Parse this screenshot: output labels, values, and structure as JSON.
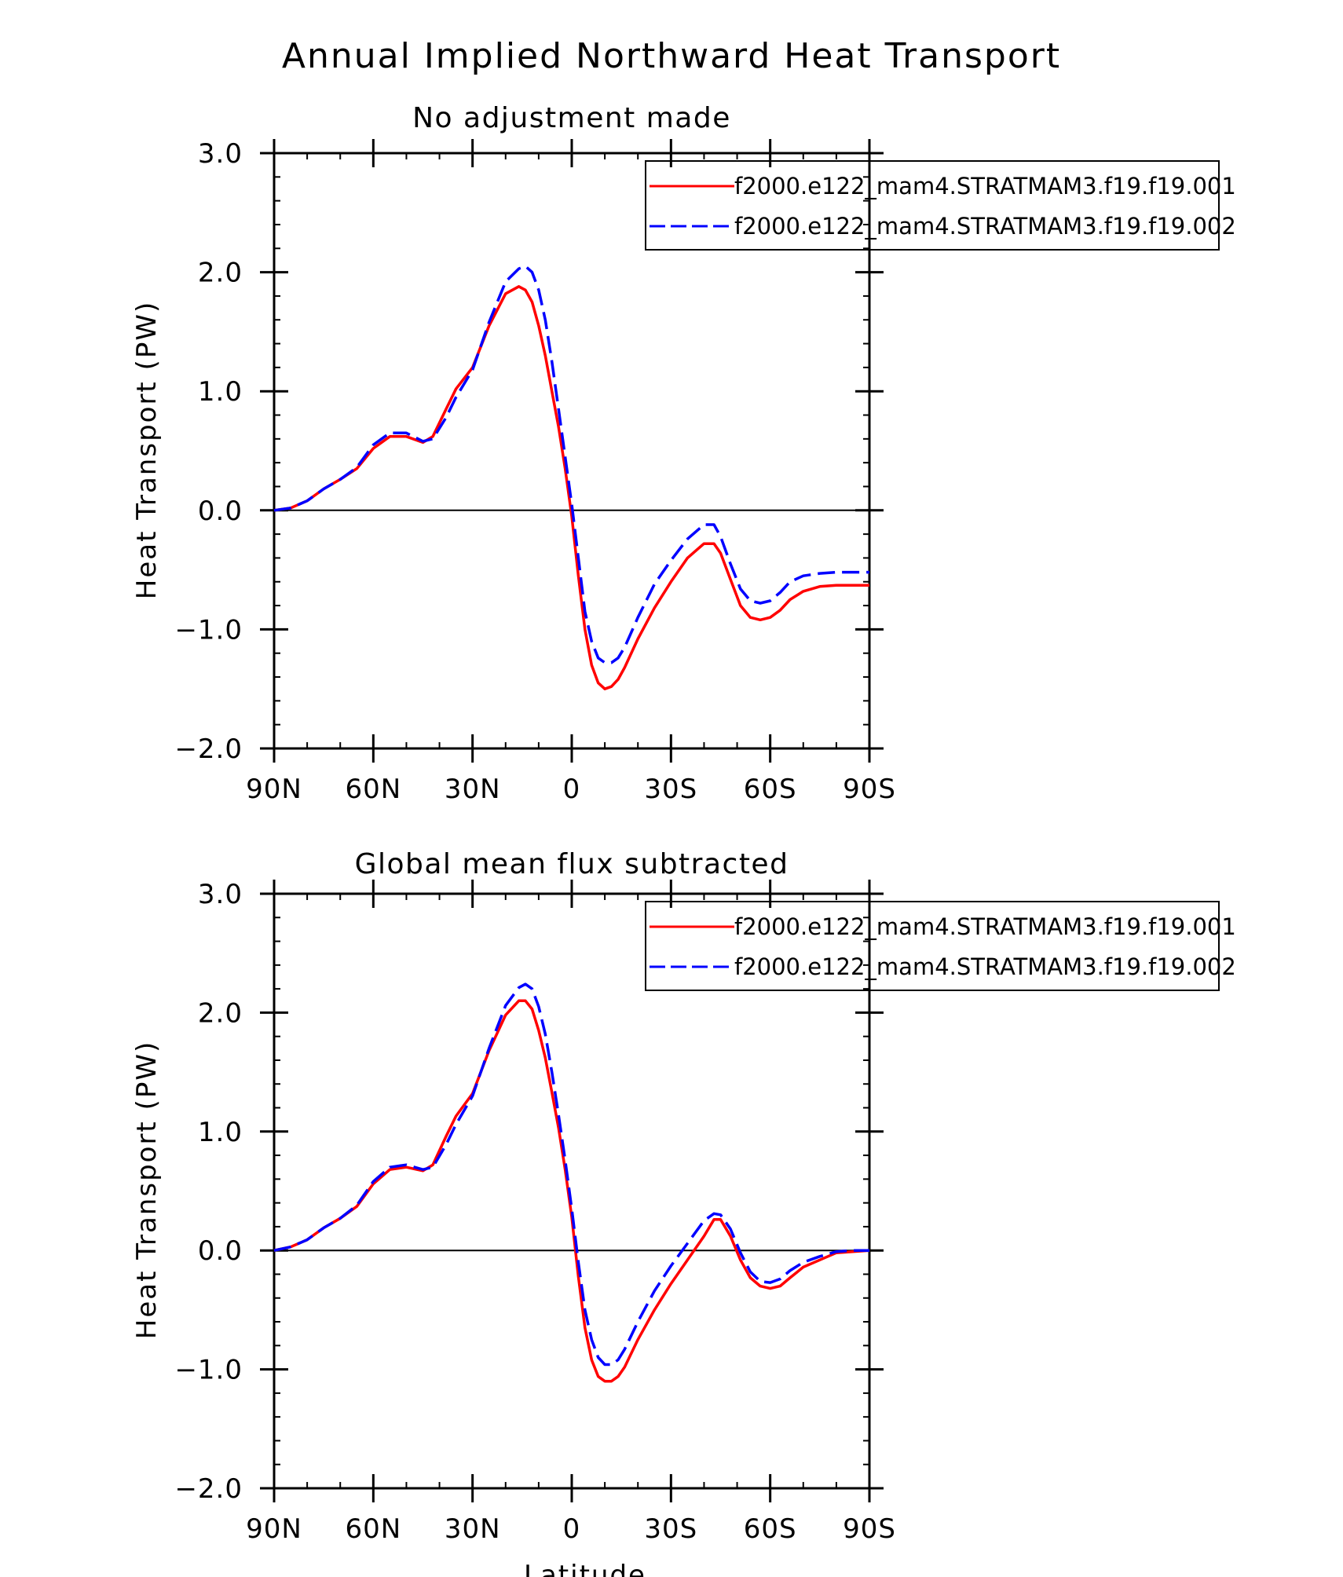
{
  "title": "Annual Implied Northward Heat Transport",
  "colors": {
    "case1": "#ff0000",
    "case2": "#0000ff",
    "axis": "#000000"
  },
  "chart_data": [
    {
      "type": "line",
      "title": "No adjustment made",
      "xlabel": "",
      "ylabel": "Heat Transport (PW)",
      "xlim": [
        -90,
        90
      ],
      "ylim": [
        -2.0,
        3.0
      ],
      "x_ticks": [
        {
          "v": -90,
          "label": "90N"
        },
        {
          "v": -60,
          "label": "60N"
        },
        {
          "v": -30,
          "label": "30N"
        },
        {
          "v": 0,
          "label": "0"
        },
        {
          "v": 30,
          "label": "30S"
        },
        {
          "v": 60,
          "label": "60S"
        },
        {
          "v": 90,
          "label": "90S"
        }
      ],
      "y_ticks": [
        {
          "v": 3.0,
          "label": "3.0"
        },
        {
          "v": 2.0,
          "label": "2.0"
        },
        {
          "v": 1.0,
          "label": "1.0"
        },
        {
          "v": 0.0,
          "label": "0.0"
        },
        {
          "v": -1.0,
          "label": "−1.0"
        },
        {
          "v": -2.0,
          "label": "−2.0"
        }
      ],
      "zero_line": true,
      "legend": "top-right",
      "series": [
        {
          "name": "f2000.e122_mam4.STRATMAM3.f19.f19.001",
          "color": "#ff0000",
          "dash": "solid",
          "x": [
            -90,
            -85,
            -80,
            -75,
            -70,
            -65,
            -60,
            -55,
            -50,
            -45,
            -42,
            -38,
            -35,
            -30,
            -25,
            -20,
            -16,
            -14,
            -12,
            -10,
            -8,
            -6,
            -4,
            -2,
            0,
            2,
            4,
            6,
            8,
            10,
            12,
            14,
            16,
            20,
            25,
            30,
            35,
            40,
            43,
            45,
            48,
            51,
            54,
            57,
            60,
            63,
            66,
            70,
            75,
            80,
            85,
            90
          ],
          "values": [
            0.0,
            0.02,
            0.08,
            0.18,
            0.26,
            0.35,
            0.52,
            0.62,
            0.62,
            0.57,
            0.62,
            0.85,
            1.02,
            1.2,
            1.55,
            1.82,
            1.88,
            1.85,
            1.75,
            1.55,
            1.3,
            1.0,
            0.7,
            0.35,
            -0.05,
            -0.55,
            -1.0,
            -1.3,
            -1.45,
            -1.5,
            -1.48,
            -1.42,
            -1.32,
            -1.08,
            -0.82,
            -0.6,
            -0.4,
            -0.28,
            -0.28,
            -0.36,
            -0.58,
            -0.8,
            -0.9,
            -0.92,
            -0.9,
            -0.84,
            -0.75,
            -0.68,
            -0.64,
            -0.63,
            -0.63,
            -0.63
          ]
        },
        {
          "name": "f2000.e122_mam4.STRATMAM3.f19.f19.002",
          "color": "#0000ff",
          "dash": "dashed",
          "x": [
            -90,
            -85,
            -80,
            -75,
            -70,
            -65,
            -60,
            -55,
            -50,
            -45,
            -42,
            -38,
            -35,
            -30,
            -25,
            -20,
            -16,
            -14,
            -12,
            -10,
            -8,
            -6,
            -4,
            -2,
            0,
            2,
            4,
            6,
            8,
            10,
            12,
            14,
            16,
            20,
            25,
            30,
            35,
            40,
            43,
            45,
            48,
            51,
            54,
            57,
            60,
            63,
            66,
            70,
            75,
            80,
            85,
            90
          ],
          "values": [
            0.0,
            0.02,
            0.08,
            0.18,
            0.26,
            0.36,
            0.55,
            0.65,
            0.65,
            0.58,
            0.6,
            0.78,
            0.95,
            1.18,
            1.58,
            1.92,
            2.03,
            2.05,
            2.0,
            1.85,
            1.6,
            1.25,
            0.85,
            0.45,
            0.05,
            -0.4,
            -0.85,
            -1.1,
            -1.24,
            -1.28,
            -1.28,
            -1.24,
            -1.15,
            -0.9,
            -0.62,
            -0.42,
            -0.24,
            -0.12,
            -0.12,
            -0.22,
            -0.45,
            -0.66,
            -0.76,
            -0.78,
            -0.76,
            -0.69,
            -0.6,
            -0.55,
            -0.53,
            -0.52,
            -0.52,
            -0.52
          ]
        }
      ]
    },
    {
      "type": "line",
      "title": "Global mean flux subtracted",
      "xlabel": "Latitude",
      "ylabel": "Heat Transport (PW)",
      "xlim": [
        -90,
        90
      ],
      "ylim": [
        -2.0,
        3.0
      ],
      "x_ticks": [
        {
          "v": -90,
          "label": "90N"
        },
        {
          "v": -60,
          "label": "60N"
        },
        {
          "v": -30,
          "label": "30N"
        },
        {
          "v": 0,
          "label": "0"
        },
        {
          "v": 30,
          "label": "30S"
        },
        {
          "v": 60,
          "label": "60S"
        },
        {
          "v": 90,
          "label": "90S"
        }
      ],
      "y_ticks": [
        {
          "v": 3.0,
          "label": "3.0"
        },
        {
          "v": 2.0,
          "label": "2.0"
        },
        {
          "v": 1.0,
          "label": "1.0"
        },
        {
          "v": 0.0,
          "label": "0.0"
        },
        {
          "v": -1.0,
          "label": "−1.0"
        },
        {
          "v": -2.0,
          "label": "−2.0"
        }
      ],
      "zero_line": true,
      "legend": "top-right",
      "series": [
        {
          "name": "f2000.e122_mam4.STRATMAM3.f19.f19.001",
          "color": "#ff0000",
          "dash": "solid",
          "x": [
            -90,
            -85,
            -80,
            -75,
            -70,
            -65,
            -60,
            -55,
            -50,
            -45,
            -42,
            -38,
            -35,
            -30,
            -25,
            -20,
            -16,
            -14,
            -12,
            -10,
            -8,
            -6,
            -4,
            -2,
            0,
            2,
            4,
            6,
            8,
            10,
            12,
            14,
            16,
            20,
            25,
            30,
            35,
            40,
            43,
            45,
            48,
            51,
            54,
            57,
            60,
            63,
            66,
            70,
            75,
            80,
            85,
            90
          ],
          "values": [
            0.0,
            0.03,
            0.09,
            0.19,
            0.27,
            0.37,
            0.56,
            0.68,
            0.7,
            0.67,
            0.72,
            0.96,
            1.13,
            1.32,
            1.68,
            1.98,
            2.1,
            2.1,
            2.03,
            1.85,
            1.62,
            1.33,
            1.03,
            0.68,
            0.28,
            -0.22,
            -0.65,
            -0.92,
            -1.06,
            -1.1,
            -1.1,
            -1.06,
            -0.98,
            -0.75,
            -0.5,
            -0.28,
            -0.08,
            0.12,
            0.26,
            0.26,
            0.12,
            -0.08,
            -0.23,
            -0.3,
            -0.32,
            -0.3,
            -0.23,
            -0.14,
            -0.08,
            -0.02,
            -0.01,
            0.0
          ]
        },
        {
          "name": "f2000.e122_mam4.STRATMAM3.f19.f19.002",
          "color": "#0000ff",
          "dash": "dashed",
          "x": [
            -90,
            -85,
            -80,
            -75,
            -70,
            -65,
            -60,
            -55,
            -50,
            -45,
            -42,
            -38,
            -35,
            -30,
            -25,
            -20,
            -16,
            -14,
            -12,
            -10,
            -8,
            -6,
            -4,
            -2,
            0,
            2,
            4,
            6,
            8,
            10,
            12,
            14,
            16,
            20,
            25,
            30,
            35,
            40,
            43,
            45,
            48,
            51,
            54,
            57,
            60,
            63,
            66,
            70,
            75,
            80,
            85,
            90
          ],
          "values": [
            0.0,
            0.03,
            0.09,
            0.19,
            0.27,
            0.38,
            0.58,
            0.7,
            0.72,
            0.68,
            0.7,
            0.89,
            1.06,
            1.3,
            1.7,
            2.06,
            2.21,
            2.24,
            2.2,
            2.05,
            1.82,
            1.5,
            1.14,
            0.76,
            0.35,
            -0.1,
            -0.5,
            -0.75,
            -0.9,
            -0.96,
            -0.96,
            -0.92,
            -0.83,
            -0.6,
            -0.34,
            -0.13,
            0.06,
            0.25,
            0.31,
            0.3,
            0.18,
            -0.02,
            -0.18,
            -0.26,
            -0.27,
            -0.24,
            -0.17,
            -0.1,
            -0.05,
            -0.01,
            0.0,
            0.0
          ]
        }
      ]
    }
  ]
}
